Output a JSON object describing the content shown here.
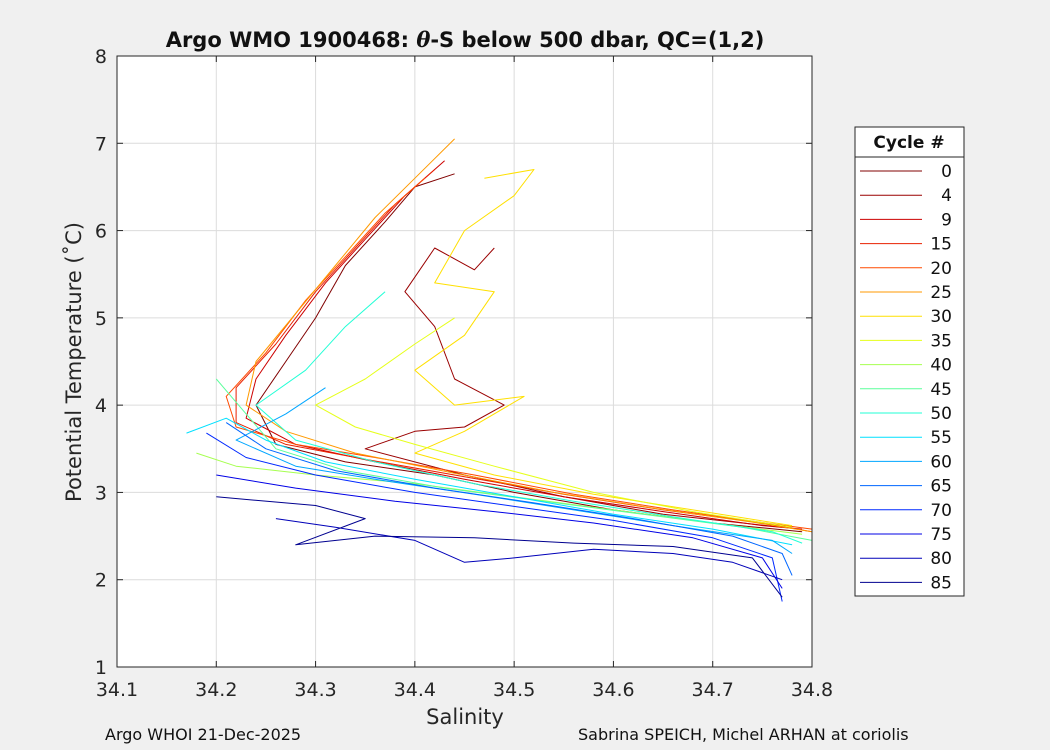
{
  "chart_data": {
    "type": "line",
    "title_prefix": "Argo WMO 1900468: ",
    "title_theta": "θ",
    "title_suffix": "-S below 500 dbar,  QC=(1,2)",
    "xlabel": "Salinity",
    "ylabel": "Potential Temperature (˚C)",
    "xlim": [
      34.1,
      34.8
    ],
    "ylim": [
      1,
      8
    ],
    "xticks": [
      "34.1",
      "34.2",
      "34.3",
      "34.4",
      "34.5",
      "34.6",
      "34.7",
      "34.8"
    ],
    "yticks": [
      "1",
      "2",
      "3",
      "4",
      "5",
      "6",
      "7",
      "8"
    ],
    "grid": true,
    "legend": {
      "title": "Cycle #",
      "placement": "right-outside",
      "entries": [
        {
          "label": "0",
          "color": "#800000"
        },
        {
          "label": "4",
          "color": "#9a0000"
        },
        {
          "label": "9",
          "color": "#cc0000"
        },
        {
          "label": "15",
          "color": "#e82000"
        },
        {
          "label": "20",
          "color": "#ff4a00"
        },
        {
          "label": "25",
          "color": "#ff9a00"
        },
        {
          "label": "30",
          "color": "#ffe000"
        },
        {
          "label": "35",
          "color": "#e6ff1a"
        },
        {
          "label": "40",
          "color": "#a6ff50"
        },
        {
          "label": "45",
          "color": "#5aff9a"
        },
        {
          "label": "50",
          "color": "#22ffd6"
        },
        {
          "label": "55",
          "color": "#00e0ff"
        },
        {
          "label": "60",
          "color": "#00a6ff"
        },
        {
          "label": "65",
          "color": "#0066ff"
        },
        {
          "label": "70",
          "color": "#0028ff"
        },
        {
          "label": "75",
          "color": "#0000e6"
        },
        {
          "label": "80",
          "color": "#0000b8"
        },
        {
          "label": "85",
          "color": "#00008f"
        }
      ]
    },
    "series": [
      {
        "name": "0",
        "color": "#800000",
        "points": [
          [
            34.44,
            6.65
          ],
          [
            34.4,
            6.5
          ],
          [
            34.37,
            6.1
          ],
          [
            34.33,
            5.6
          ],
          [
            34.3,
            5.0
          ],
          [
            34.27,
            4.5
          ],
          [
            34.24,
            4.0
          ],
          [
            34.26,
            3.55
          ],
          [
            34.33,
            3.35
          ],
          [
            34.42,
            3.2
          ],
          [
            34.5,
            3.0
          ],
          [
            34.6,
            2.8
          ],
          [
            34.7,
            2.65
          ],
          [
            34.79,
            2.55
          ]
        ]
      },
      {
        "name": "4",
        "color": "#9a0000",
        "points": [
          [
            34.48,
            5.8
          ],
          [
            34.46,
            5.55
          ],
          [
            34.42,
            5.8
          ],
          [
            34.39,
            5.3
          ],
          [
            34.42,
            4.9
          ],
          [
            34.44,
            4.3
          ],
          [
            34.49,
            4.0
          ],
          [
            34.45,
            3.75
          ],
          [
            34.4,
            3.7
          ],
          [
            34.35,
            3.5
          ],
          [
            34.45,
            3.2
          ],
          [
            34.55,
            2.95
          ],
          [
            34.65,
            2.75
          ],
          [
            34.77,
            2.6
          ]
        ]
      },
      {
        "name": "9",
        "color": "#cc0000",
        "points": [
          [
            34.43,
            6.8
          ],
          [
            34.39,
            6.4
          ],
          [
            34.35,
            5.9
          ],
          [
            34.31,
            5.4
          ],
          [
            34.27,
            4.8
          ],
          [
            34.24,
            4.3
          ],
          [
            34.23,
            3.85
          ],
          [
            34.28,
            3.55
          ],
          [
            34.36,
            3.35
          ],
          [
            34.45,
            3.15
          ],
          [
            34.55,
            2.95
          ],
          [
            34.65,
            2.78
          ],
          [
            34.75,
            2.62
          ],
          [
            34.79,
            2.58
          ]
        ]
      },
      {
        "name": "15",
        "color": "#e82000",
        "points": [
          [
            34.42,
            6.7
          ],
          [
            34.38,
            6.3
          ],
          [
            34.34,
            5.8
          ],
          [
            34.3,
            5.3
          ],
          [
            34.26,
            4.7
          ],
          [
            34.22,
            4.2
          ],
          [
            34.22,
            3.8
          ],
          [
            34.27,
            3.55
          ],
          [
            34.35,
            3.38
          ],
          [
            34.45,
            3.18
          ],
          [
            34.55,
            2.98
          ],
          [
            34.65,
            2.8
          ],
          [
            34.75,
            2.65
          ],
          [
            34.8,
            2.55
          ]
        ]
      },
      {
        "name": "20",
        "color": "#ff4a00",
        "points": [
          [
            34.41,
            6.6
          ],
          [
            34.37,
            6.2
          ],
          [
            34.33,
            5.7
          ],
          [
            34.29,
            5.2
          ],
          [
            34.25,
            4.6
          ],
          [
            34.21,
            4.1
          ],
          [
            34.22,
            3.75
          ],
          [
            34.28,
            3.55
          ],
          [
            34.36,
            3.4
          ],
          [
            34.46,
            3.2
          ],
          [
            34.56,
            2.98
          ],
          [
            34.66,
            2.8
          ],
          [
            34.76,
            2.64
          ],
          [
            34.8,
            2.58
          ]
        ]
      },
      {
        "name": "25",
        "color": "#ff9a00",
        "points": [
          [
            34.44,
            7.05
          ],
          [
            34.4,
            6.6
          ],
          [
            34.36,
            6.15
          ],
          [
            34.32,
            5.6
          ],
          [
            34.28,
            5.05
          ],
          [
            34.24,
            4.5
          ],
          [
            34.23,
            4.0
          ],
          [
            34.27,
            3.7
          ],
          [
            34.34,
            3.45
          ],
          [
            34.44,
            3.22
          ],
          [
            34.54,
            3.0
          ],
          [
            34.64,
            2.82
          ],
          [
            34.74,
            2.66
          ],
          [
            34.8,
            2.55
          ]
        ]
      },
      {
        "name": "30",
        "color": "#ffe000",
        "points": [
          [
            34.47,
            6.6
          ],
          [
            34.52,
            6.7
          ],
          [
            34.5,
            6.4
          ],
          [
            34.45,
            6.0
          ],
          [
            34.42,
            5.4
          ],
          [
            34.48,
            5.3
          ],
          [
            34.45,
            4.8
          ],
          [
            34.4,
            4.4
          ],
          [
            34.44,
            4.0
          ],
          [
            34.51,
            4.1
          ],
          [
            34.45,
            3.7
          ],
          [
            34.4,
            3.45
          ],
          [
            34.48,
            3.2
          ],
          [
            34.58,
            2.98
          ],
          [
            34.68,
            2.8
          ],
          [
            34.78,
            2.62
          ]
        ]
      },
      {
        "name": "35",
        "color": "#e6ff1a",
        "points": [
          [
            34.44,
            5.0
          ],
          [
            34.4,
            4.7
          ],
          [
            34.35,
            4.3
          ],
          [
            34.3,
            4.0
          ],
          [
            34.34,
            3.75
          ],
          [
            34.4,
            3.55
          ],
          [
            34.48,
            3.3
          ],
          [
            34.58,
            3.0
          ],
          [
            34.68,
            2.78
          ],
          [
            34.78,
            2.6
          ]
        ]
      },
      {
        "name": "40",
        "color": "#a6ff50",
        "points": [
          [
            34.18,
            3.45
          ],
          [
            34.22,
            3.3
          ],
          [
            34.3,
            3.2
          ],
          [
            34.4,
            3.1
          ],
          [
            34.5,
            2.95
          ],
          [
            34.6,
            2.8
          ],
          [
            34.7,
            2.65
          ],
          [
            34.79,
            2.52
          ]
        ]
      },
      {
        "name": "45",
        "color": "#5aff9a",
        "points": [
          [
            34.2,
            4.3
          ],
          [
            34.23,
            3.9
          ],
          [
            34.26,
            3.5
          ],
          [
            34.33,
            3.25
          ],
          [
            34.43,
            3.05
          ],
          [
            34.53,
            2.9
          ],
          [
            34.63,
            2.75
          ],
          [
            34.73,
            2.6
          ],
          [
            34.8,
            2.45
          ]
        ]
      },
      {
        "name": "50",
        "color": "#22ffd6",
        "points": [
          [
            34.37,
            5.3
          ],
          [
            34.33,
            4.9
          ],
          [
            34.29,
            4.4
          ],
          [
            34.24,
            4.0
          ],
          [
            34.28,
            3.6
          ],
          [
            34.36,
            3.35
          ],
          [
            34.46,
            3.1
          ],
          [
            34.56,
            2.9
          ],
          [
            34.66,
            2.72
          ],
          [
            34.76,
            2.55
          ],
          [
            34.79,
            2.42
          ]
        ]
      },
      {
        "name": "55",
        "color": "#00e0ff",
        "points": [
          [
            34.17,
            3.68
          ],
          [
            34.21,
            3.85
          ],
          [
            34.25,
            3.6
          ],
          [
            34.31,
            3.35
          ],
          [
            34.4,
            3.15
          ],
          [
            34.5,
            2.95
          ],
          [
            34.6,
            2.75
          ],
          [
            34.7,
            2.58
          ],
          [
            34.78,
            2.4
          ]
        ]
      },
      {
        "name": "60",
        "color": "#00a6ff",
        "points": [
          [
            34.31,
            4.2
          ],
          [
            34.27,
            3.9
          ],
          [
            34.22,
            3.6
          ],
          [
            34.28,
            3.3
          ],
          [
            34.36,
            3.15
          ],
          [
            34.46,
            2.98
          ],
          [
            34.56,
            2.8
          ],
          [
            34.66,
            2.62
          ],
          [
            34.76,
            2.45
          ],
          [
            34.78,
            2.3
          ]
        ]
      },
      {
        "name": "65",
        "color": "#0066ff",
        "points": [
          [
            34.21,
            3.8
          ],
          [
            34.25,
            3.5
          ],
          [
            34.32,
            3.25
          ],
          [
            34.42,
            3.05
          ],
          [
            34.52,
            2.88
          ],
          [
            34.62,
            2.7
          ],
          [
            34.72,
            2.5
          ],
          [
            34.77,
            2.3
          ],
          [
            34.78,
            2.05
          ]
        ]
      },
      {
        "name": "70",
        "color": "#0028ff",
        "points": [
          [
            34.19,
            3.68
          ],
          [
            34.23,
            3.4
          ],
          [
            34.3,
            3.2
          ],
          [
            34.4,
            3.0
          ],
          [
            34.5,
            2.84
          ],
          [
            34.6,
            2.68
          ],
          [
            34.7,
            2.48
          ],
          [
            34.76,
            2.25
          ],
          [
            34.77,
            1.75
          ]
        ]
      },
      {
        "name": "75",
        "color": "#0000e6",
        "points": [
          [
            34.2,
            3.2
          ],
          [
            34.28,
            3.05
          ],
          [
            34.38,
            2.9
          ],
          [
            34.48,
            2.78
          ],
          [
            34.58,
            2.65
          ],
          [
            34.68,
            2.48
          ],
          [
            34.75,
            2.25
          ],
          [
            34.77,
            1.9
          ]
        ]
      },
      {
        "name": "80",
        "color": "#0000b8",
        "points": [
          [
            34.26,
            2.7
          ],
          [
            34.32,
            2.6
          ],
          [
            34.4,
            2.45
          ],
          [
            34.45,
            2.2
          ],
          [
            34.5,
            2.25
          ],
          [
            34.58,
            2.35
          ],
          [
            34.66,
            2.3
          ],
          [
            34.72,
            2.2
          ],
          [
            34.77,
            2.0
          ]
        ]
      },
      {
        "name": "85",
        "color": "#00008f",
        "points": [
          [
            34.2,
            2.95
          ],
          [
            34.3,
            2.85
          ],
          [
            34.35,
            2.7
          ],
          [
            34.28,
            2.4
          ],
          [
            34.36,
            2.5
          ],
          [
            34.46,
            2.48
          ],
          [
            34.56,
            2.42
          ],
          [
            34.66,
            2.38
          ],
          [
            34.74,
            2.25
          ],
          [
            34.77,
            1.8
          ]
        ]
      }
    ]
  },
  "footer": {
    "left": "Argo WHOI 21-Dec-2025",
    "right": "Sabrina SPEICH, Michel ARHAN at coriolis"
  }
}
